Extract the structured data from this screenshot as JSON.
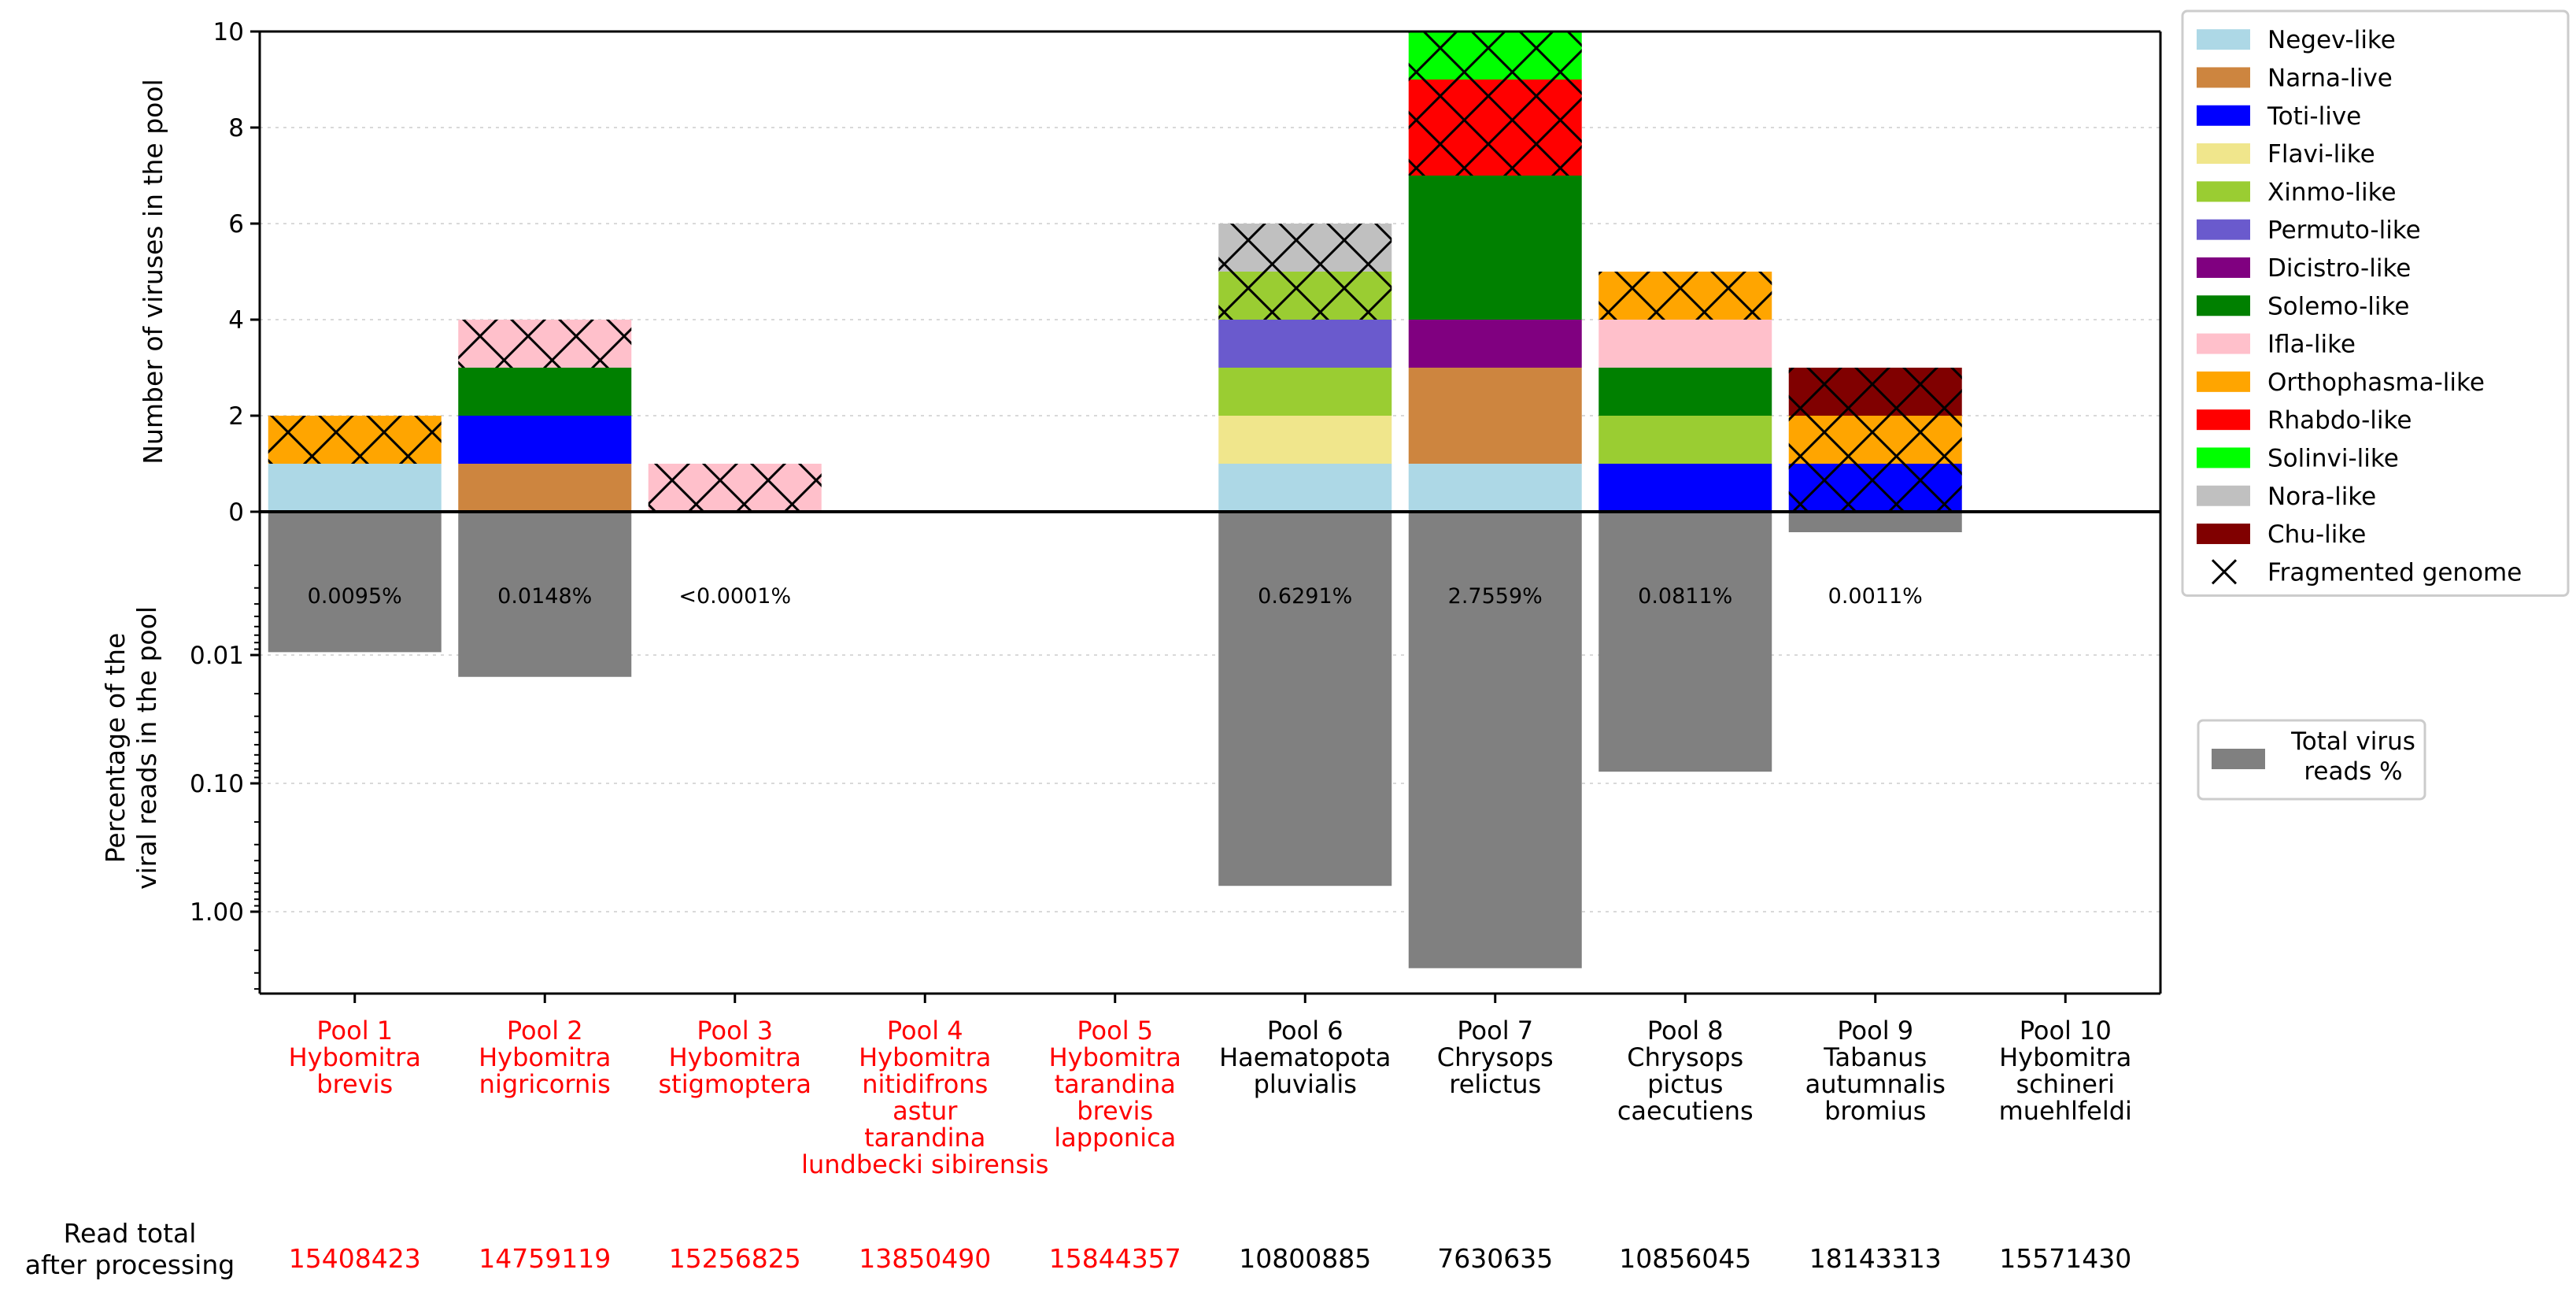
{
  "chart_data": {
    "type": "bar",
    "top_panel": {
      "ylabel": "Number of viruses in the pool",
      "ylim": [
        0,
        10
      ],
      "yticks": [
        "0",
        "2",
        "4",
        "6",
        "8",
        "10"
      ],
      "grid": true
    },
    "bottom_panel": {
      "ylabel_line1": "Percentage of the",
      "ylabel_line2": "viral reads in the pool",
      "scale": "log",
      "yticks": [
        "0.01",
        "0.10",
        "1.00"
      ],
      "grid": true
    },
    "families": [
      {
        "name": "Negev-like",
        "color": "#add8e6"
      },
      {
        "name": "Narna-live",
        "color": "#cd853f"
      },
      {
        "name": "Toti-live",
        "color": "#0000ff"
      },
      {
        "name": "Flavi-like",
        "color": "#f0e68c"
      },
      {
        "name": "Xinmo-like",
        "color": "#9acd32"
      },
      {
        "name": "Permuto-like",
        "color": "#6a5acd"
      },
      {
        "name": "Dicistro-like",
        "color": "#800080"
      },
      {
        "name": "Solemo-like",
        "color": "#008000"
      },
      {
        "name": "Ifla-like",
        "color": "#ffc0cb"
      },
      {
        "name": "Orthophasma-like",
        "color": "#ffa500"
      },
      {
        "name": "Rhabdo-like",
        "color": "#ff0000"
      },
      {
        "name": "Solinvi-like",
        "color": "#00ff00"
      },
      {
        "name": "Nora-like",
        "color": "#c0c0c0"
      },
      {
        "name": "Chu-like",
        "color": "#800000"
      }
    ],
    "fragmented_label": "Fragmented genome",
    "total_reads_legend": {
      "line1": "Total virus",
      "line2": "reads %",
      "color": "#808080"
    },
    "pools": [
      {
        "pool": "Pool 1",
        "species": [
          "Hybomitra",
          "brevis"
        ],
        "color": "#ff0000",
        "read_total": "15408423",
        "segments": [
          {
            "family": "Negev-like",
            "count": 1,
            "fragmented": false
          },
          {
            "family": "Orthophasma-like",
            "count": 1,
            "fragmented": true
          }
        ],
        "percent_value": 0.0095,
        "percent_label": "0.0095%"
      },
      {
        "pool": "Pool 2",
        "species": [
          "Hybomitra",
          "nigricornis"
        ],
        "color": "#ff0000",
        "read_total": "14759119",
        "segments": [
          {
            "family": "Narna-live",
            "count": 1,
            "fragmented": false
          },
          {
            "family": "Toti-live",
            "count": 1,
            "fragmented": false
          },
          {
            "family": "Solemo-like",
            "count": 1,
            "fragmented": false
          },
          {
            "family": "Ifla-like",
            "count": 1,
            "fragmented": true
          }
        ],
        "percent_value": 0.0148,
        "percent_label": "0.0148%"
      },
      {
        "pool": "Pool 3",
        "species": [
          "Hybomitra",
          "stigmoptera"
        ],
        "color": "#ff0000",
        "read_total": "15256825",
        "segments": [
          {
            "family": "Ifla-like",
            "count": 1,
            "fragmented": true
          }
        ],
        "percent_value": null,
        "percent_label": "<0.0001%"
      },
      {
        "pool": "Pool 4",
        "species": [
          "Hybomitra",
          "nitidifrons",
          "astur",
          "tarandina",
          "lundbecki sibirensis"
        ],
        "color": "#ff0000",
        "read_total": "13850490",
        "segments": [],
        "percent_value": null,
        "percent_label": ""
      },
      {
        "pool": "Pool 5",
        "species": [
          "Hybomitra",
          "tarandina",
          "brevis",
          "lapponica"
        ],
        "color": "#ff0000",
        "read_total": "15844357",
        "segments": [],
        "percent_value": null,
        "percent_label": ""
      },
      {
        "pool": "Pool 6",
        "species": [
          "Haematopota",
          "pluvialis"
        ],
        "color": "#000000",
        "read_total": "10800885",
        "segments": [
          {
            "family": "Negev-like",
            "count": 1,
            "fragmented": false
          },
          {
            "family": "Flavi-like",
            "count": 1,
            "fragmented": false
          },
          {
            "family": "Xinmo-like",
            "count": 1,
            "fragmented": false
          },
          {
            "family": "Permuto-like",
            "count": 1,
            "fragmented": false
          },
          {
            "family": "Xinmo-like",
            "count": 1,
            "fragmented": true
          },
          {
            "family": "Nora-like",
            "count": 1,
            "fragmented": true
          }
        ],
        "percent_value": 0.6291,
        "percent_label": "0.6291%"
      },
      {
        "pool": "Pool 7",
        "species": [
          "Chrysops",
          "relictus"
        ],
        "color": "#000000",
        "read_total": "7630635",
        "segments": [
          {
            "family": "Negev-like",
            "count": 1,
            "fragmented": false
          },
          {
            "family": "Narna-live",
            "count": 2,
            "fragmented": false
          },
          {
            "family": "Dicistro-like",
            "count": 1,
            "fragmented": false
          },
          {
            "family": "Solemo-like",
            "count": 3,
            "fragmented": false
          },
          {
            "family": "Rhabdo-like",
            "count": 2,
            "fragmented": true
          },
          {
            "family": "Solinvi-like",
            "count": 1,
            "fragmented": true
          }
        ],
        "percent_value": 2.7559,
        "percent_label": "2.7559%"
      },
      {
        "pool": "Pool 8",
        "species": [
          "Chrysops",
          "pictus",
          "caecutiens"
        ],
        "color": "#000000",
        "read_total": "10856045",
        "segments": [
          {
            "family": "Toti-live",
            "count": 1,
            "fragmented": false
          },
          {
            "family": "Xinmo-like",
            "count": 1,
            "fragmented": false
          },
          {
            "family": "Solemo-like",
            "count": 1,
            "fragmented": false
          },
          {
            "family": "Ifla-like",
            "count": 1,
            "fragmented": false
          },
          {
            "family": "Orthophasma-like",
            "count": 1,
            "fragmented": true
          }
        ],
        "percent_value": 0.0811,
        "percent_label": "0.0811%"
      },
      {
        "pool": "Pool 9",
        "species": [
          "Tabanus",
          "autumnalis",
          "bromius"
        ],
        "color": "#000000",
        "read_total": "18143313",
        "segments": [
          {
            "family": "Toti-live",
            "count": 1,
            "fragmented": true
          },
          {
            "family": "Orthophasma-like",
            "count": 1,
            "fragmented": true
          },
          {
            "family": "Chu-like",
            "count": 1,
            "fragmented": true
          }
        ],
        "percent_value": 0.0011,
        "percent_label": "0.0011%"
      },
      {
        "pool": "Pool 10",
        "species": [
          "Hybomitra",
          "schineri",
          "muehlfeldi"
        ],
        "color": "#000000",
        "read_total": "15571430",
        "segments": [],
        "percent_value": null,
        "percent_label": ""
      }
    ],
    "read_total_label": [
      "Read total",
      "after processing"
    ]
  }
}
